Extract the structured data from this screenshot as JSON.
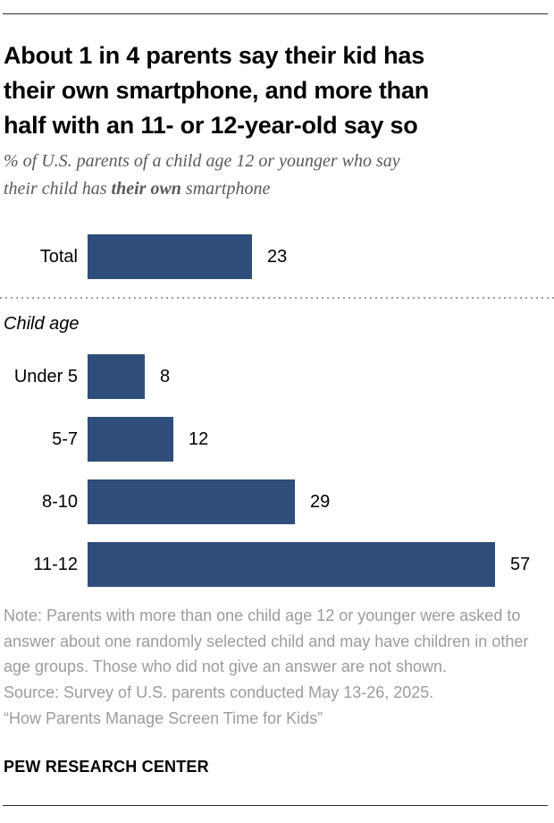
{
  "header": {
    "title_lines": [
      "About 1 in 4 parents say their kid has",
      "their own smartphone, and more than",
      "half with an 11- or 12-year-old say so"
    ],
    "subtitle": {
      "line1": "% of U.S. parents of a child age 12 or younger who say",
      "line2_pre": "their child has ",
      "line2_bold": "their own",
      "line2_post": " smartphone"
    }
  },
  "chart_data": {
    "type": "bar",
    "orientation": "horizontal",
    "unit": "% of parents",
    "title": "% of U.S. parents of a child age 12 or younger who say their child has their own smartphone",
    "categories": [
      "Total",
      "Under 5",
      "5-7",
      "8-10",
      "11-12"
    ],
    "values": [
      23,
      8,
      12,
      29,
      57
    ],
    "groups": [
      {
        "header": "",
        "rows": [
          {
            "label": "Total",
            "value": 23
          }
        ]
      },
      {
        "header": "Child age",
        "rows": [
          {
            "label": "Under 5",
            "value": 8
          },
          {
            "label": "5-7",
            "value": 12
          },
          {
            "label": "8-10",
            "value": 29
          },
          {
            "label": "11-12",
            "value": 57
          }
        ]
      }
    ],
    "bar_color": "#2E4D7B",
    "xlim": [
      0,
      60
    ],
    "value_labels": true,
    "grid": false,
    "legend": false
  },
  "footer": {
    "note": "Note: Parents with more than one child age 12 or younger were asked to answer about one randomly selected child and may have children in other age groups. Those who did not give an answer are not shown.",
    "source": "Source: Survey of U.S. parents conducted May 13-26, 2025.",
    "report": "“How Parents Manage Screen Time for Kids”",
    "org": "PEW RESEARCH CENTER"
  }
}
